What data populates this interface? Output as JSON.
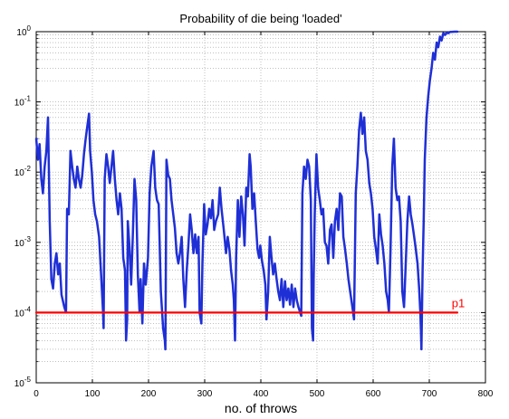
{
  "chart_data": {
    "type": "line",
    "title": "Probability of die being 'loaded'",
    "xlabel": "no. of throws",
    "ylabel": "",
    "xlim": [
      0,
      800
    ],
    "ylim": [
      1e-05,
      1
    ],
    "yscale": "log",
    "grid": true,
    "x_ticks": [
      "0",
      "100",
      "200",
      "300",
      "400",
      "500",
      "600",
      "700",
      "800"
    ],
    "y_ticks": [
      {
        "base": "10",
        "exp": "-5",
        "value": 1e-05
      },
      {
        "base": "10",
        "exp": "-4",
        "value": 0.0001
      },
      {
        "base": "10",
        "exp": "-3",
        "value": 0.001
      },
      {
        "base": "10",
        "exp": "-2",
        "value": 0.01
      },
      {
        "base": "10",
        "exp": "-1",
        "value": 0.1
      },
      {
        "base": "10",
        "exp": "0",
        "value": 1
      }
    ],
    "colors": {
      "probability": "#1f2fd6",
      "threshold": "#ff0000",
      "axes": "#000000",
      "grid": "#9a9a9a"
    },
    "series": [
      {
        "color": "#1f2fd6",
        "points": [
          [
            0,
            0.03
          ],
          [
            3,
            0.015
          ],
          [
            6,
            0.025
          ],
          [
            9,
            0.008
          ],
          [
            12,
            0.005
          ],
          [
            15,
            0.012
          ],
          [
            18,
            0.02
          ],
          [
            21,
            0.06
          ],
          [
            24,
            0.002
          ],
          [
            27,
            0.0003
          ],
          [
            30,
            0.00022
          ],
          [
            33,
            0.0005
          ],
          [
            36,
            0.0007
          ],
          [
            39,
            0.00035
          ],
          [
            42,
            0.0005
          ],
          [
            45,
            0.00018
          ],
          [
            50,
            0.00012
          ],
          [
            53,
            0.0001
          ],
          [
            55,
            0.003
          ],
          [
            58,
            0.0025
          ],
          [
            61,
            0.02
          ],
          [
            64,
            0.012
          ],
          [
            67,
            0.008
          ],
          [
            70,
            0.006
          ],
          [
            73,
            0.012
          ],
          [
            76,
            0.008
          ],
          [
            79,
            0.006
          ],
          [
            82,
            0.009
          ],
          [
            85,
            0.018
          ],
          [
            88,
            0.03
          ],
          [
            91,
            0.045
          ],
          [
            94,
            0.068
          ],
          [
            96,
            0.02
          ],
          [
            99,
            0.01
          ],
          [
            102,
            0.004
          ],
          [
            105,
            0.0025
          ],
          [
            108,
            0.002
          ],
          [
            112,
            0.0012
          ],
          [
            116,
            0.0003
          ],
          [
            119,
            0.0001
          ],
          [
            120,
            6e-05
          ],
          [
            122,
            0.008
          ],
          [
            125,
            0.018
          ],
          [
            128,
            0.012
          ],
          [
            131,
            0.007
          ],
          [
            134,
            0.012
          ],
          [
            137,
            0.02
          ],
          [
            140,
            0.008
          ],
          [
            143,
            0.004
          ],
          [
            146,
            0.0025
          ],
          [
            149,
            0.005
          ],
          [
            152,
            0.003
          ],
          [
            155,
            0.0006
          ],
          [
            158,
            0.0004
          ],
          [
            160,
            4e-05
          ],
          [
            162,
            8e-05
          ],
          [
            163,
            0.002
          ],
          [
            166,
            0.0009
          ],
          [
            169,
            0.00025
          ],
          [
            172,
            0.0012
          ],
          [
            175,
            0.008
          ],
          [
            178,
            0.004
          ],
          [
            181,
            0.00035
          ],
          [
            184,
            0.0001
          ],
          [
            186,
            0.0003
          ],
          [
            189,
            7e-05
          ],
          [
            192,
            0.0005
          ],
          [
            195,
            0.00025
          ],
          [
            199,
            0.0006
          ],
          [
            202,
            0.005
          ],
          [
            205,
            0.012
          ],
          [
            209,
            0.02
          ],
          [
            212,
            0.006
          ],
          [
            215,
            0.004
          ],
          [
            218,
            0.0035
          ],
          [
            222,
            0.0002
          ],
          [
            226,
            6e-05
          ],
          [
            229,
            4e-05
          ],
          [
            230,
            3e-05
          ],
          [
            232,
            0.015
          ],
          [
            235,
            0.009
          ],
          [
            238,
            0.008
          ],
          [
            241,
            0.004
          ],
          [
            244,
            0.0025
          ],
          [
            247,
            0.0016
          ],
          [
            250,
            0.0007
          ],
          [
            253,
            0.0005
          ],
          [
            256,
            0.0007
          ],
          [
            259,
            0.0012
          ],
          [
            262,
            0.0003
          ],
          [
            265,
            0.00012
          ],
          [
            268,
            0.0004
          ],
          [
            271,
            0.0009
          ],
          [
            274,
            0.0025
          ],
          [
            277,
            0.0015
          ],
          [
            280,
            0.0007
          ],
          [
            283,
            0.0013
          ],
          [
            286,
            0.0007
          ],
          [
            289,
            0.0012
          ],
          [
            291,
            0.0001
          ],
          [
            294,
            7e-05
          ],
          [
            296,
            0.0005
          ],
          [
            299,
            0.0035
          ],
          [
            302,
            0.0013
          ],
          [
            305,
            0.0018
          ],
          [
            308,
            0.003
          ],
          [
            311,
            0.0022
          ],
          [
            314,
            0.004
          ],
          [
            317,
            0.0015
          ],
          [
            320,
            0.002
          ],
          [
            324,
            0.0025
          ],
          [
            327,
            0.006
          ],
          [
            330,
            0.003
          ],
          [
            334,
            0.0015
          ],
          [
            338,
            0.0007
          ],
          [
            341,
            0.0012
          ],
          [
            344,
            0.0008
          ],
          [
            347,
            0.0004
          ],
          [
            350,
            0.00025
          ],
          [
            352,
            0.00015
          ],
          [
            354,
            4e-05
          ],
          [
            356,
            0.0006
          ],
          [
            359,
            0.004
          ],
          [
            362,
            0.0012
          ],
          [
            365,
            0.0045
          ],
          [
            368,
            0.0025
          ],
          [
            371,
            0.0009
          ],
          [
            374,
            0.006
          ],
          [
            377,
            0.0045
          ],
          [
            380,
            0.018
          ],
          [
            382,
            0.012
          ],
          [
            385,
            0.003
          ],
          [
            388,
            0.005
          ],
          [
            391,
            0.002
          ],
          [
            394,
            0.0008
          ],
          [
            397,
            0.0006
          ],
          [
            399,
            0.0009
          ],
          [
            402,
            0.00055
          ],
          [
            405,
            0.0004
          ],
          [
            408,
            0.00025
          ],
          [
            410,
            8e-05
          ],
          [
            413,
            0.0002
          ],
          [
            416,
            0.0012
          ],
          [
            419,
            0.0006
          ],
          [
            422,
            0.00035
          ],
          [
            425,
            0.0005
          ],
          [
            428,
            0.0003
          ],
          [
            431,
            0.0002
          ],
          [
            434,
            0.00015
          ],
          [
            437,
            0.0003
          ],
          [
            440,
            0.00012
          ],
          [
            443,
            0.00028
          ],
          [
            446,
            0.00015
          ],
          [
            449,
            0.00022
          ],
          [
            452,
            0.00013
          ],
          [
            455,
            0.00025
          ],
          [
            458,
            0.00012
          ],
          [
            461,
            0.00022
          ],
          [
            464,
            0.00015
          ],
          [
            467,
            0.00012
          ],
          [
            470,
            0.0001
          ],
          [
            472,
            9e-05
          ],
          [
            474,
            0.005
          ],
          [
            477,
            0.012
          ],
          [
            480,
            0.008
          ],
          [
            483,
            0.015
          ],
          [
            486,
            0.012
          ],
          [
            489,
            0.004
          ],
          [
            491,
            6e-05
          ],
          [
            493,
            4e-05
          ],
          [
            494,
            0.0003
          ],
          [
            496,
            0.0025
          ],
          [
            499,
            0.018
          ],
          [
            502,
            0.006
          ],
          [
            505,
            0.004
          ],
          [
            508,
            0.0025
          ],
          [
            511,
            0.003
          ],
          [
            514,
            0.001
          ],
          [
            517,
            0.0009
          ],
          [
            520,
            0.0005
          ],
          [
            523,
            0.0015
          ],
          [
            526,
            0.0018
          ],
          [
            529,
            0.0006
          ],
          [
            532,
            0.002
          ],
          [
            535,
            0.003
          ],
          [
            538,
            0.0015
          ],
          [
            541,
            0.005
          ],
          [
            544,
            0.0045
          ],
          [
            547,
            0.0012
          ],
          [
            550,
            0.0008
          ],
          [
            553,
            0.0005
          ],
          [
            556,
            0.0003
          ],
          [
            559,
            0.0002
          ],
          [
            563,
            0.00012
          ],
          [
            566,
            8e-05
          ],
          [
            569,
            0.005
          ],
          [
            572,
            0.012
          ],
          [
            575,
            0.04
          ],
          [
            578,
            0.07
          ],
          [
            581,
            0.035
          ],
          [
            584,
            0.06
          ],
          [
            587,
            0.02
          ],
          [
            590,
            0.015
          ],
          [
            593,
            0.007
          ],
          [
            596,
            0.005
          ],
          [
            599,
            0.003
          ],
          [
            602,
            0.0012
          ],
          [
            605,
            0.0008
          ],
          [
            608,
            0.0005
          ],
          [
            611,
            0.0025
          ],
          [
            614,
            0.0013
          ],
          [
            617,
            0.0009
          ],
          [
            620,
            0.0005
          ],
          [
            623,
            0.0002
          ],
          [
            626,
            0.00015
          ],
          [
            628,
            0.0001
          ],
          [
            631,
            0.0008
          ],
          [
            634,
            0.012
          ],
          [
            637,
            0.03
          ],
          [
            640,
            0.006
          ],
          [
            643,
            0.004
          ],
          [
            646,
            0.0045
          ],
          [
            649,
            0.002
          ],
          [
            652,
            0.0002
          ],
          [
            655,
            0.00012
          ],
          [
            658,
            0.0005
          ],
          [
            661,
            0.002
          ],
          [
            664,
            0.0045
          ],
          [
            667,
            0.0025
          ],
          [
            670,
            0.0018
          ],
          [
            673,
            0.0012
          ],
          [
            676,
            0.0008
          ],
          [
            679,
            0.0005
          ],
          [
            682,
            0.00022
          ],
          [
            684,
            0.0001
          ],
          [
            685,
            6e-05
          ],
          [
            686,
            3e-05
          ],
          [
            688,
            0.0004
          ],
          [
            690,
            0.002
          ],
          [
            692,
            0.015
          ],
          [
            695,
            0.06
          ],
          [
            698,
            0.12
          ],
          [
            701,
            0.2
          ],
          [
            704,
            0.3
          ],
          [
            707,
            0.5
          ],
          [
            710,
            0.4
          ],
          [
            713,
            0.7
          ],
          [
            716,
            0.6
          ],
          [
            719,
            0.85
          ],
          [
            722,
            0.75
          ],
          [
            725,
            0.95
          ],
          [
            728,
            0.9
          ],
          [
            731,
            0.97
          ],
          [
            734,
            0.95
          ],
          [
            737,
            0.99
          ],
          [
            740,
            0.99
          ],
          [
            745,
            1.0
          ],
          [
            750,
            1.0
          ]
        ]
      },
      {
        "color": "#ff0000",
        "points": [
          [
            0,
            0.0001
          ],
          [
            750,
            0.0001
          ]
        ]
      }
    ],
    "annotations": [
      {
        "text": "p1",
        "x": 740,
        "y": 0.0001,
        "color": "#ff0000"
      }
    ]
  }
}
